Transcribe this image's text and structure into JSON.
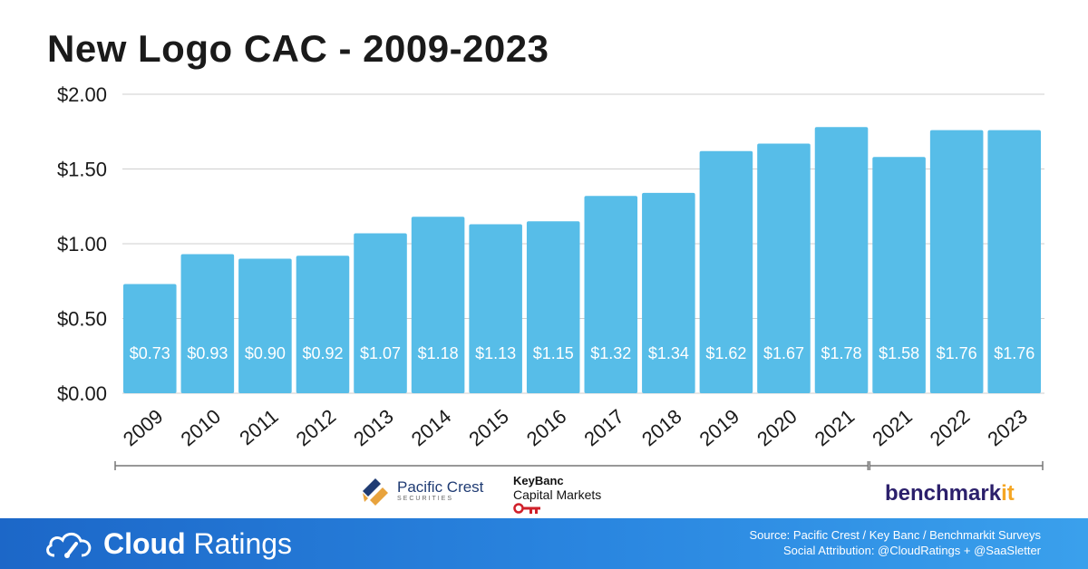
{
  "chart_data": {
    "type": "bar",
    "title": "New Logo CAC - 2009-2023",
    "categories": [
      "2009",
      "2010",
      "2011",
      "2012",
      "2013",
      "2014",
      "2015",
      "2016",
      "2017",
      "2018",
      "2019",
      "2020",
      "2021",
      "2021",
      "2022",
      "2023"
    ],
    "values": [
      0.73,
      0.93,
      0.9,
      0.92,
      1.07,
      1.18,
      1.13,
      1.15,
      1.32,
      1.34,
      1.62,
      1.67,
      1.78,
      1.58,
      1.76,
      1.76
    ],
    "value_labels": [
      "$0.73",
      "$0.93",
      "$0.90",
      "$0.92",
      "$1.07",
      "$1.18",
      "$1.13",
      "$1.15",
      "$1.32",
      "$1.34",
      "$1.62",
      "$1.67",
      "$1.78",
      "$1.58",
      "$1.76",
      "$1.76"
    ],
    "y_ticks": [
      0,
      0.5,
      1.0,
      1.5,
      2.0
    ],
    "y_tick_labels": [
      "$0.00",
      "$0.50",
      "$1.00",
      "$1.50",
      "$2.00"
    ],
    "ylim": [
      0,
      2.0
    ],
    "xlabel": "",
    "ylabel": "",
    "grid": true,
    "bar_color": "#57bde8",
    "source_groups": [
      {
        "label": "Pacific Crest / KeyBanc",
        "from_index": 0,
        "to_index": 12
      },
      {
        "label": "Benchmarkit",
        "from_index": 13,
        "to_index": 15
      }
    ]
  },
  "logos": {
    "pacific_crest": {
      "name": "Pacific Crest",
      "sub": "SECURITIES"
    },
    "keybanc": {
      "line1": "KeyBanc",
      "line2": "Capital Markets"
    },
    "benchmarkit": {
      "main": "benchmark",
      "accent": "it"
    }
  },
  "footer": {
    "brand_bold": "Cloud",
    "brand_light": "Ratings",
    "source_line1": "Source: Pacific Crest / Key Banc / Benchmarkit Surveys",
    "source_line2": "Social Attribution: @CloudRatings + @SaaSletter"
  },
  "colors": {
    "footer_start": "#1c67c8",
    "footer_end": "#3aa0ec",
    "benchmarkit_accent": "#f5a623"
  }
}
